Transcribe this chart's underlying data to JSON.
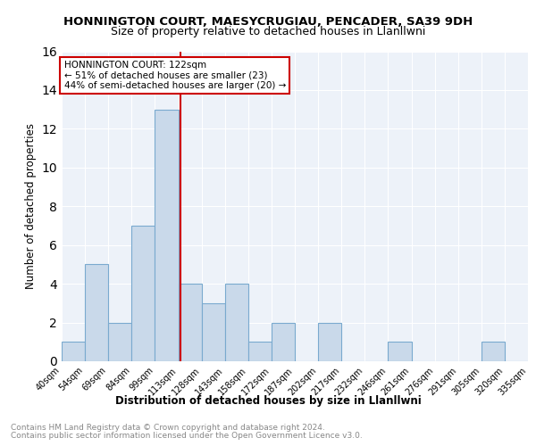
{
  "title": "HONNINGTON COURT, MAESYCRUGIAU, PENCADER, SA39 9DH",
  "subtitle": "Size of property relative to detached houses in Llanllwni",
  "xlabel": "Distribution of detached houses by size in Llanllwni",
  "ylabel": "Number of detached properties",
  "bin_edges": [
    "40sqm",
    "54sqm",
    "69sqm",
    "84sqm",
    "99sqm",
    "113sqm",
    "128sqm",
    "143sqm",
    "158sqm",
    "172sqm",
    "187sqm",
    "202sqm",
    "217sqm",
    "232sqm",
    "246sqm",
    "261sqm",
    "276sqm",
    "291sqm",
    "305sqm",
    "320sqm",
    "335sqm"
  ],
  "bar_heights": [
    1,
    5,
    2,
    7,
    13,
    4,
    3,
    4,
    1,
    2,
    0,
    2,
    0,
    0,
    1,
    0,
    0,
    0,
    1,
    0
  ],
  "bar_color": "#c9d9ea",
  "bar_edge_color": "#7aaacf",
  "red_line_label": "HONNINGTON COURT: 122sqm",
  "annotation_line1": "← 51% of detached houses are smaller (23)",
  "annotation_line2": "44% of semi-detached houses are larger (20) →",
  "annotation_box_color": "#ffffff",
  "annotation_box_edge": "#cc0000",
  "red_line_color": "#cc0000",
  "red_line_x": 4.6,
  "ylim": [
    0,
    16
  ],
  "yticks": [
    0,
    2,
    4,
    6,
    8,
    10,
    12,
    14,
    16
  ],
  "footer_line1": "Contains HM Land Registry data © Crown copyright and database right 2024.",
  "footer_line2": "Contains public sector information licensed under the Open Government Licence v3.0.",
  "plot_bg_color": "#edf2f9"
}
